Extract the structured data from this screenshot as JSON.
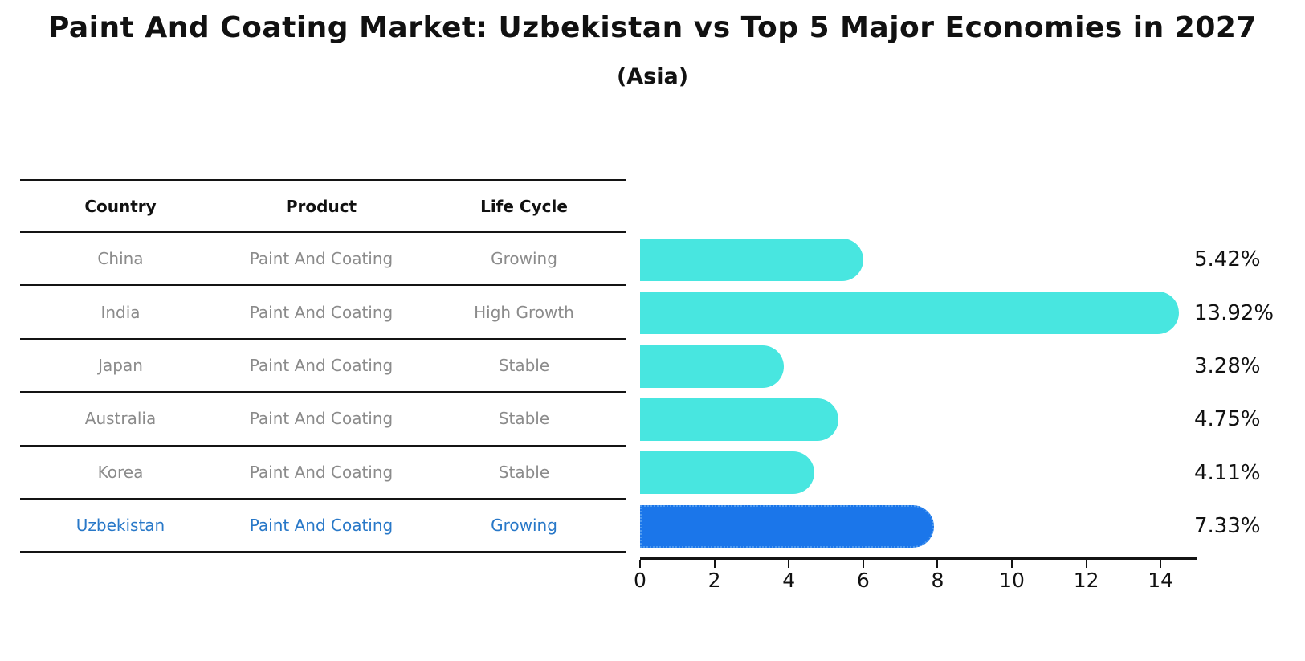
{
  "title": "Paint And Coating Market: Uzbekistan vs Top 5 Major Economies in 2027",
  "subtitle": "(Asia)",
  "table": {
    "headers": [
      "Country",
      "Product",
      "Life Cycle"
    ],
    "rows": [
      {
        "country": "China",
        "product": "Paint And Coating",
        "life_cycle": "Growing",
        "highlight": false
      },
      {
        "country": "India",
        "product": "Paint And Coating",
        "life_cycle": "High Growth",
        "highlight": false
      },
      {
        "country": "Japan",
        "product": "Paint And Coating",
        "life_cycle": "Stable",
        "highlight": false
      },
      {
        "country": "Australia",
        "product": "Paint And Coating",
        "life_cycle": "Stable",
        "highlight": false
      },
      {
        "country": "Korea",
        "product": "Paint And Coating",
        "life_cycle": "Stable",
        "highlight": false
      },
      {
        "country": "Uzbekistan",
        "product": "Paint And Coating",
        "life_cycle": "Growing",
        "highlight": true
      }
    ]
  },
  "chart_data": {
    "type": "bar",
    "orientation": "horizontal",
    "title": "Paint And Coating Market: Uzbekistan vs Top 5 Major Economies in 2027",
    "subtitle": "(Asia)",
    "categories": [
      "China",
      "India",
      "Japan",
      "Australia",
      "Korea",
      "Uzbekistan"
    ],
    "values": [
      5.42,
      13.92,
      3.28,
      4.75,
      4.11,
      7.33
    ],
    "value_labels": [
      "5.42%",
      "13.92%",
      "3.28%",
      "4.75%",
      "4.11%",
      "7.33%"
    ],
    "highlight_index": 5,
    "x_ticks": [
      0,
      2,
      4,
      6,
      8,
      10,
      12,
      14
    ],
    "xlim": [
      0,
      14.97
    ],
    "grid": false,
    "legend": false
  },
  "colors": {
    "bar_cyan": "#48e6e0",
    "bar_blue": "#1b76ea",
    "bar_blue_border": "#4f9bf0",
    "text_black": "#111111",
    "text_gray": "#8b8b8b",
    "text_blue": "#2878c8",
    "line_black": "#141414"
  }
}
